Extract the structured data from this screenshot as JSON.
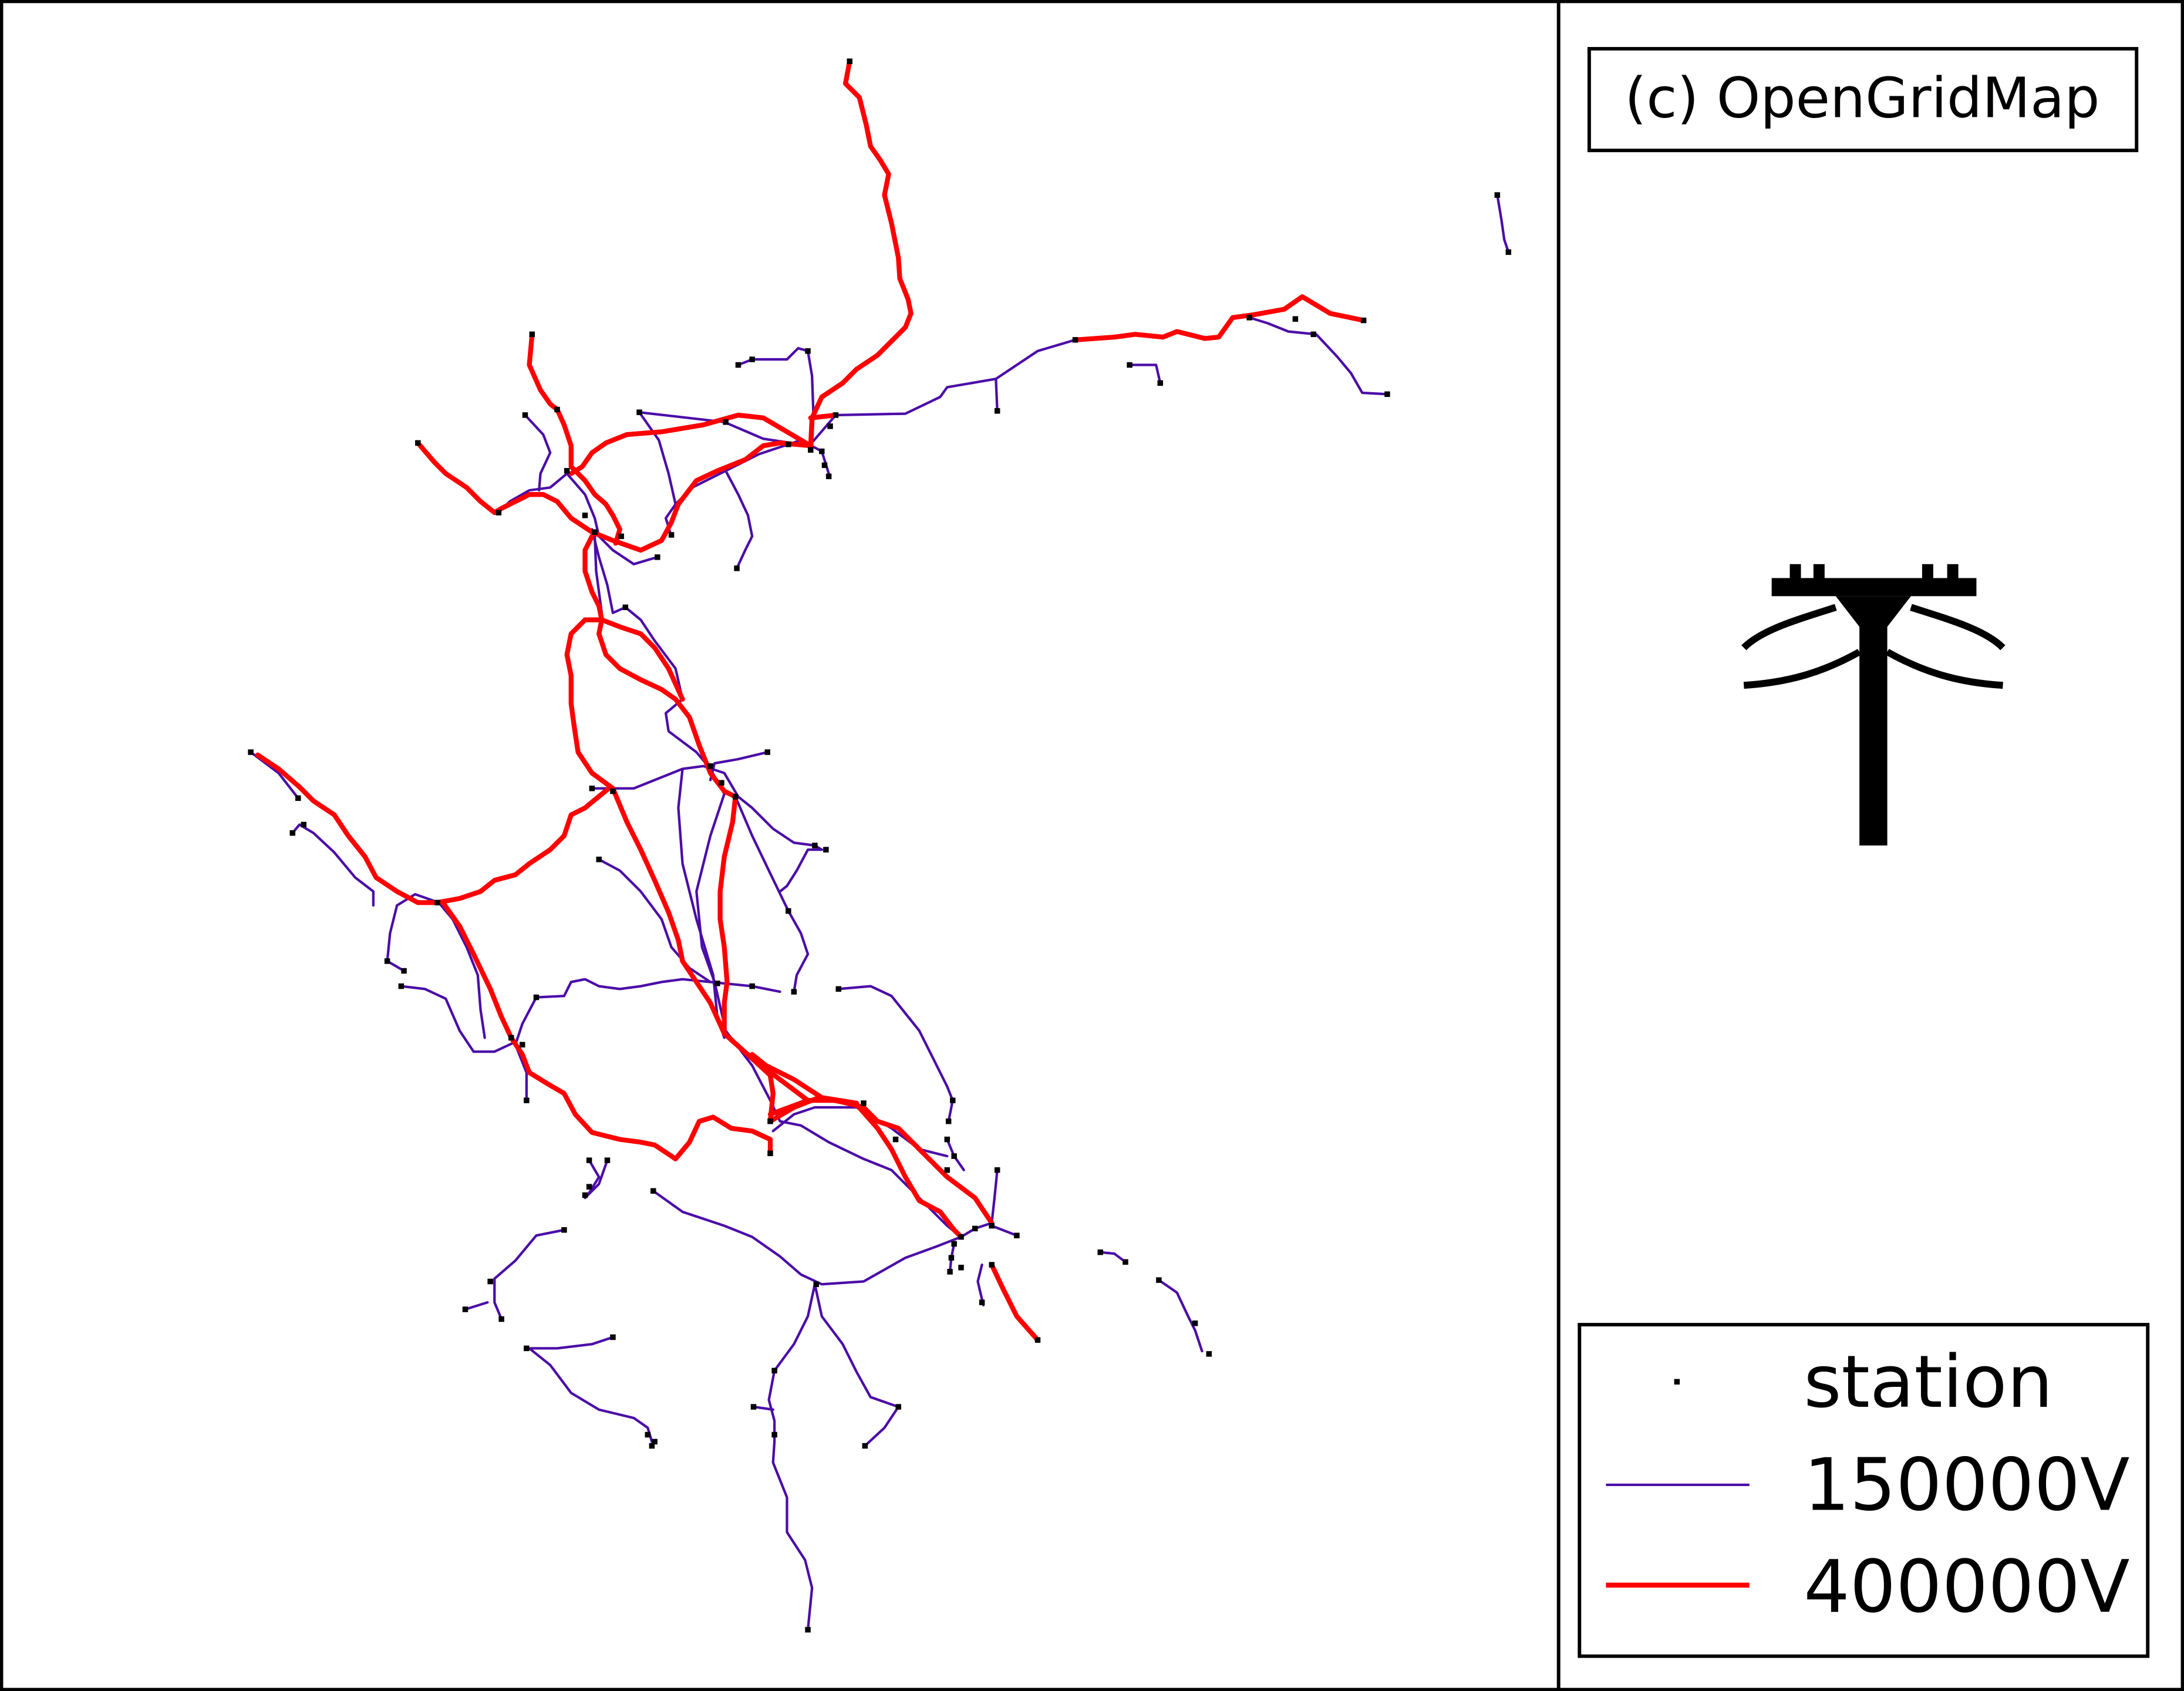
{
  "credit": "(c) OpenGridMap",
  "icon": "power-pylon-icon",
  "legend": {
    "items": [
      {
        "label": "station",
        "symbol": "square-marker",
        "color": "#000000"
      },
      {
        "label": "150000V",
        "symbol": "line",
        "color": "#4b0ca8"
      },
      {
        "label": "400000V",
        "symbol": "line",
        "color": "#ff0000"
      }
    ]
  },
  "colors": {
    "line_150kv": "#4b0ca8",
    "line_400kv": "#ff0000",
    "station": "#000000",
    "frame": "#000000",
    "background": "#ffffff"
  }
}
